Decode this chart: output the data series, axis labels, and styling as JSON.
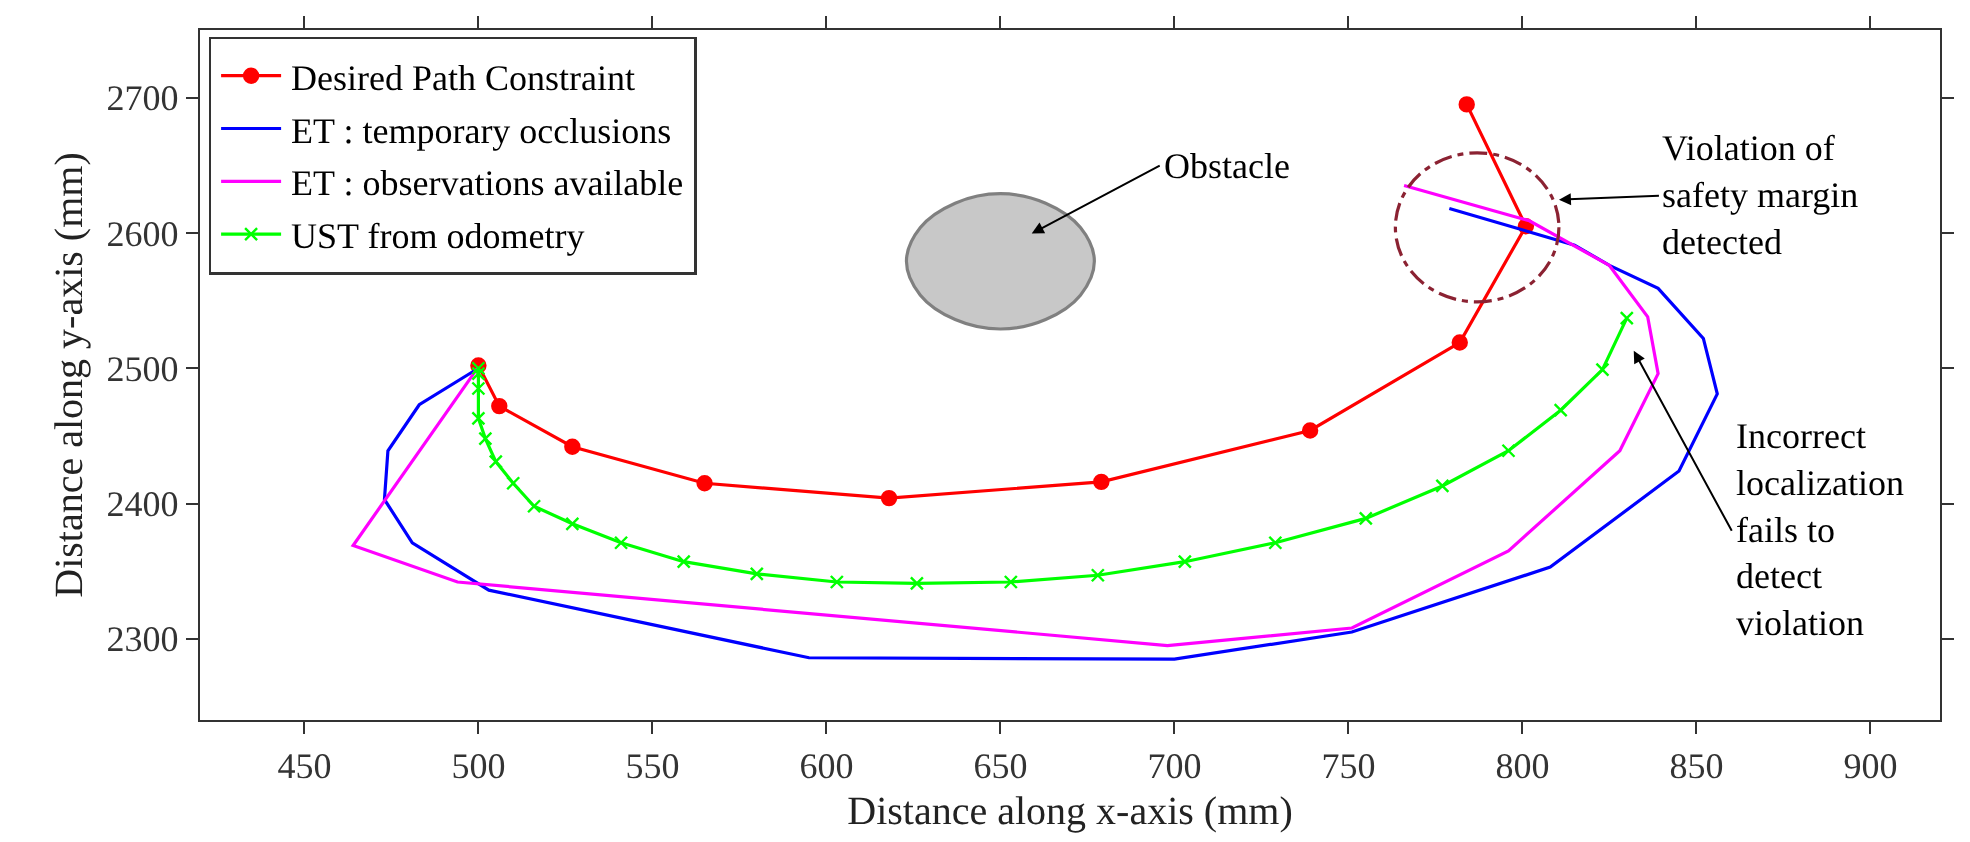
{
  "chart_data": {
    "type": "line",
    "xlabel": "Distance along x-axis (mm)",
    "ylabel": "Distance along y-axis (mm)",
    "xlim": [
      420,
      920
    ],
    "xticks": [
      450,
      500,
      550,
      600,
      650,
      700,
      750,
      800,
      850,
      900
    ],
    "ylim": [
      2240,
      2750
    ],
    "yticks": [
      2300,
      2400,
      2500,
      2600,
      2700
    ],
    "grid": false,
    "legend": "top left",
    "line_style": "solid",
    "series": [
      {
        "name": "Desired Path Constraint",
        "color": "#ff0000",
        "marker": "circle",
        "x": [
          500,
          506,
          527,
          565,
          618,
          679,
          739,
          782,
          801,
          784
        ],
        "values": [
          2502,
          2472,
          2442,
          2415,
          2404,
          2416,
          2454,
          2519,
          2605,
          2695
        ]
      },
      {
        "name": "ET : temporary occlusions",
        "color": "#0000ff",
        "marker": "none",
        "x": [
          500,
          483,
          474,
          473,
          481,
          503,
          595,
          700,
          751,
          808,
          845,
          856,
          852,
          839,
          825,
          815,
          779
        ],
        "values": [
          2500,
          2473,
          2439,
          2403,
          2371,
          2336,
          2286,
          2285,
          2305,
          2353,
          2424,
          2481,
          2522,
          2559,
          2576,
          2591,
          2618
        ]
      },
      {
        "name": "ET : observations available",
        "color": "#ff00ff",
        "marker": "none",
        "x": [
          500,
          464,
          494,
          698,
          751,
          796,
          828,
          839,
          836,
          825,
          802,
          766
        ],
        "values": [
          2501,
          2369,
          2342,
          2295,
          2308,
          2365,
          2439,
          2496,
          2538,
          2576,
          2609,
          2635
        ]
      },
      {
        "name": "UST from odometry",
        "color": "#00ff00",
        "marker": "cross",
        "x": [
          500,
          500,
          500,
          500,
          502,
          505,
          510,
          516,
          527,
          541,
          559,
          580,
          603,
          626,
          653,
          678,
          703,
          729,
          755,
          777,
          796,
          811,
          823,
          830
        ],
        "values": [
          2500,
          2496,
          2485,
          2463,
          2448,
          2431,
          2415,
          2398,
          2385,
          2371,
          2357,
          2348,
          2342,
          2341,
          2342,
          2347,
          2357,
          2371,
          2389,
          2413,
          2439,
          2469,
          2499,
          2537
        ]
      },
      {
        "type": "area",
        "color": "#c8c8c8",
        "marker": "none",
        "x": [
          677,
          673,
          663,
          650,
          637,
          627,
          623,
          627,
          637,
          650,
          663,
          673,
          677
        ],
        "values": [
          2579,
          2604,
          2622,
          2629,
          2622,
          2604,
          2579,
          2554,
          2536,
          2529,
          2536,
          2554,
          2579
        ]
      }
    ],
    "annotations": [
      "Obstacle",
      "Violation of\nsafety margin\ndetected",
      "Incorrect\nlocalization\nfails to\ndetect\nviolation"
    ]
  }
}
